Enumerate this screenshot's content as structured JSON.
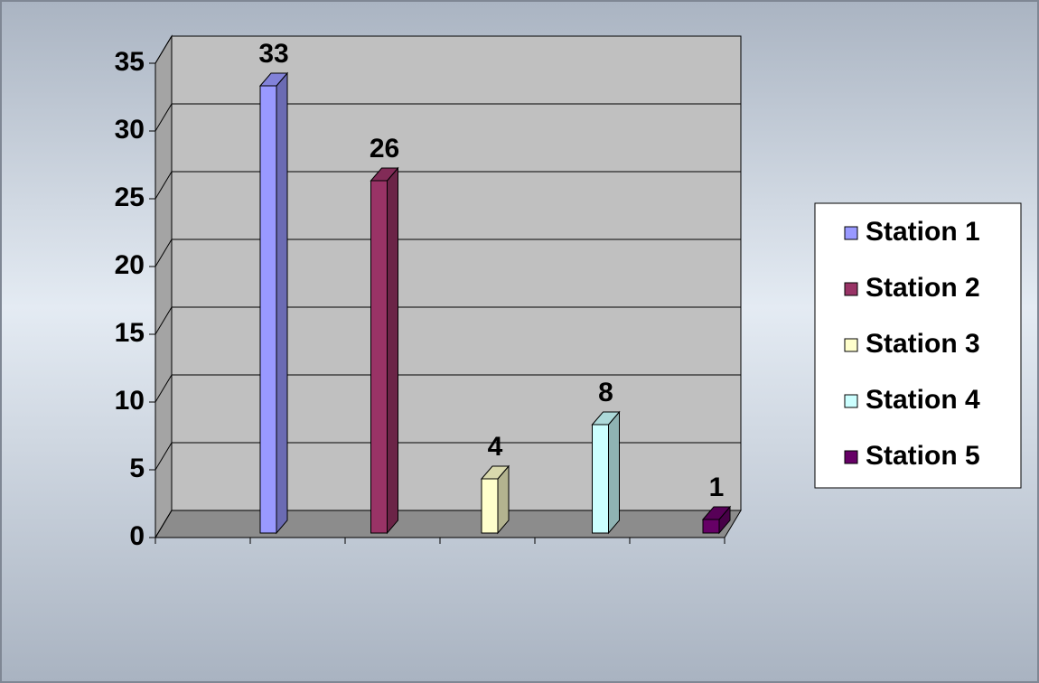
{
  "chart_data": {
    "type": "bar3d",
    "categories": [
      null
    ],
    "series": [
      {
        "name": "Station 1",
        "color": "#9999ff",
        "values": [
          33
        ]
      },
      {
        "name": "Station 2",
        "color": "#993366",
        "values": [
          26
        ]
      },
      {
        "name": "Station 3",
        "color": "#ffffcc",
        "values": [
          4
        ]
      },
      {
        "name": "Station 4",
        "color": "#ccffff",
        "values": [
          8
        ]
      },
      {
        "name": "Station 5",
        "color": "#660066",
        "values": [
          1
        ]
      }
    ],
    "ylim": [
      0,
      35
    ],
    "yticks": [
      0,
      5,
      10,
      15,
      20,
      25,
      30,
      35
    ],
    "grid": true,
    "legend": "right",
    "data_labels": true
  }
}
